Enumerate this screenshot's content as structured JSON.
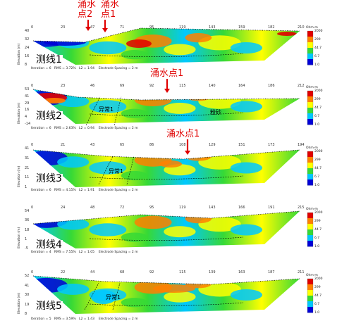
{
  "water_labels": {
    "p1_a": "涌水\n点2",
    "p1_b": "涌水\n点1",
    "p2": "涌水点1",
    "p3": "涌水点1"
  },
  "anomaly_label": "异常1",
  "sand_label": "粉砂",
  "elevation_label": "Elevation (m)",
  "scale": {
    "title": "Ohm-m",
    "ticks": [
      "2000",
      "299",
      "44.7",
      "6.7",
      "1.0"
    ]
  },
  "colors": {
    "low": "#0000d8",
    "mid_low": "#00c8ff",
    "mid": "#36d936",
    "mid_high": "#ffff00",
    "high": "#ff8000",
    "very_high": "#e00000",
    "annotation": "#e00000"
  },
  "chart_data": [
    {
      "type": "heatmap",
      "title": "测线1",
      "x_ticks": [
        "0",
        "23",
        "47",
        "71",
        "95",
        "119",
        "143",
        "159",
        "182",
        "210"
      ],
      "y_ticks": [
        "40",
        "32",
        "24",
        "16",
        "8"
      ],
      "footer": "Iteration = 6   RMS = 3.72%   L2 = 1.94    Electrode Spacing = 2 m"
    },
    {
      "type": "heatmap",
      "title": "测线2",
      "x_ticks": [
        "0",
        "23",
        "46",
        "69",
        "92",
        "115",
        "140",
        "164",
        "186",
        "212"
      ],
      "y_ticks": [
        "53",
        "41",
        "29",
        "16",
        "4",
        "-14"
      ],
      "footer": "Iteration = 6   RMS = 2.63%   L2 = 0.94    Electrode Spacing = 2 m"
    },
    {
      "type": "heatmap",
      "title": "测线3",
      "x_ticks": [
        "0",
        "21",
        "43",
        "65",
        "86",
        "108",
        "129",
        "151",
        "173",
        "194"
      ],
      "y_ticks": [
        "41",
        "31",
        "21",
        "11",
        "1"
      ],
      "footer": "Iteration = 6   RMS = 4.15%   L2 = 1.91    Electrode Spacing = 2 m"
    },
    {
      "type": "heatmap",
      "title": "测线4",
      "x_ticks": [
        "0",
        "24",
        "48",
        "72",
        "95",
        "119",
        "143",
        "166",
        "191",
        "215"
      ],
      "y_ticks": [
        "54",
        "36",
        "18",
        "1",
        "-5"
      ],
      "footer": "Iteration = 4   RMS = 7.55%   L2 = 1.05    Electrode Spacing = 2 m"
    },
    {
      "type": "heatmap",
      "title": "测线5",
      "x_ticks": [
        "0",
        "22",
        "44",
        "68",
        "92",
        "115",
        "139",
        "163",
        "187",
        "211"
      ],
      "y_ticks": [
        "52",
        "41",
        "30",
        "19",
        "8"
      ],
      "footer": "Iteration = 5   RMS = 3.59%   L2 = 1.43    Electrode Spacing = 2 m"
    }
  ]
}
